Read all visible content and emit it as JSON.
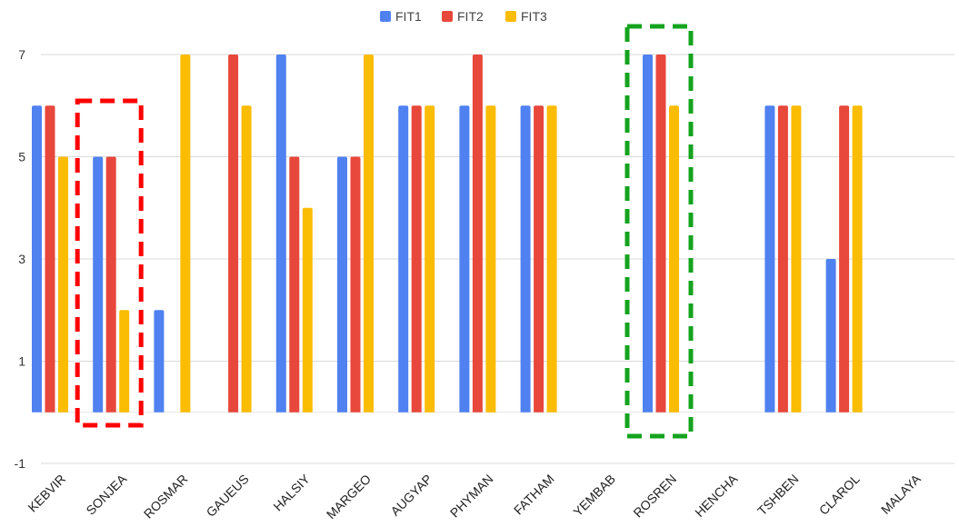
{
  "chart_data": {
    "type": "bar",
    "categories": [
      "KEBVIR",
      "SONJEA",
      "ROSMAR",
      "GAUEUS",
      "HALSIY",
      "MARGEO",
      "AUGYAP",
      "PHYMAN",
      "FATHAM",
      "YEMBAB",
      "ROSREN",
      "HENCHA",
      "TSHBEN",
      "CLAROL",
      "MALAYA"
    ],
    "series": [
      {
        "name": "FIT1",
        "color": "#4f81f0",
        "values": [
          6,
          5,
          2,
          null,
          7,
          5,
          6,
          6,
          6,
          null,
          7,
          null,
          6,
          3,
          null
        ]
      },
      {
        "name": "FIT2",
        "color": "#e8473b",
        "values": [
          6,
          5,
          null,
          7,
          5,
          5,
          6,
          7,
          6,
          null,
          7,
          null,
          6,
          6,
          null
        ]
      },
      {
        "name": "FIT3",
        "color": "#fbbc04",
        "values": [
          5,
          2,
          7,
          6,
          4,
          7,
          6,
          6,
          6,
          null,
          6,
          null,
          6,
          6,
          null
        ]
      }
    ],
    "yticks": [
      "7",
      "5",
      "3",
      "1",
      "-1"
    ],
    "ylim": [
      -1,
      7
    ],
    "baseline": 0,
    "legend_position": "top-center",
    "grid": true,
    "highlights": [
      {
        "category": "SONJEA",
        "color": "#ff0000",
        "style": "dashed"
      },
      {
        "category": "ROSREN",
        "color": "#14a31e",
        "style": "dashed"
      }
    ]
  }
}
